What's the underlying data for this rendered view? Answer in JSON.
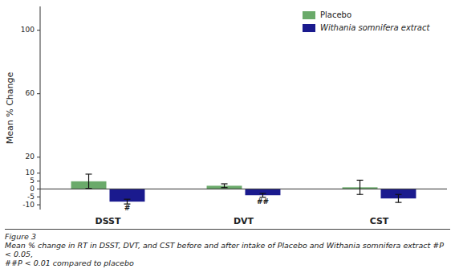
{
  "chart_data": {
    "type": "bar",
    "categories": [
      "DSST",
      "DVT",
      "CST"
    ],
    "series": [
      {
        "name": "Placebo",
        "color": "#6aaa6a",
        "values": [
          4.8,
          2.0,
          1.0
        ],
        "errors": [
          4.5,
          1.2,
          4.5
        ]
      },
      {
        "name": "Withania somnifera extract",
        "color": "#1a1a8e",
        "values": [
          -8.0,
          -4.0,
          -6.0
        ],
        "errors": [
          1.5,
          1.2,
          2.5
        ]
      }
    ],
    "ylabel": "Mean % Change",
    "ylim": [
      -13,
      115
    ],
    "yticks": [
      -10,
      -5,
      0,
      5,
      10,
      20,
      60,
      100
    ],
    "grid": false,
    "legend": "upper right",
    "annotations": [
      {
        "text": "#",
        "category": "DSST",
        "series": "Withania somnifera extract"
      },
      {
        "text": "##",
        "category": "DVT",
        "series": "Withania somnifera extract"
      }
    ],
    "caption": [
      "Figure 3",
      "Mean % change in RT in DSST, DVT, and CST before and after intake of Placebo and Withania somnifera extract  #P < 0.05,",
      "##P < 0.01 compared to placebo"
    ]
  }
}
